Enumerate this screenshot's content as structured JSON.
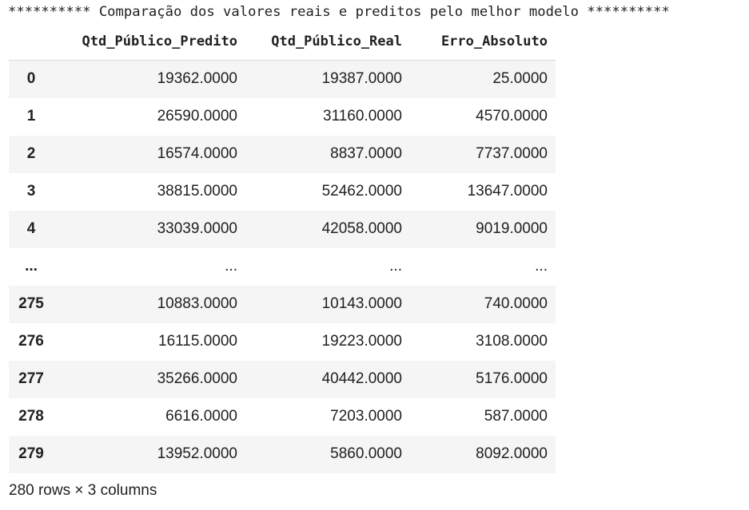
{
  "output": {
    "header_line": "********** Comparação dos valores reais e preditos pelo melhor modelo **********"
  },
  "table": {
    "index_header": "",
    "columns": [
      "Qtd_Público_Predito",
      "Qtd_Público_Real",
      "Erro_Absoluto"
    ],
    "rows": [
      {
        "index": "0",
        "values": [
          "19362.0000",
          "19387.0000",
          "25.0000"
        ]
      },
      {
        "index": "1",
        "values": [
          "26590.0000",
          "31160.0000",
          "4570.0000"
        ]
      },
      {
        "index": "2",
        "values": [
          "16574.0000",
          "8837.0000",
          "7737.0000"
        ]
      },
      {
        "index": "3",
        "values": [
          "38815.0000",
          "52462.0000",
          "13647.0000"
        ]
      },
      {
        "index": "4",
        "values": [
          "33039.0000",
          "42058.0000",
          "9019.0000"
        ]
      },
      {
        "index": "...",
        "values": [
          "...",
          "...",
          "..."
        ]
      },
      {
        "index": "275",
        "values": [
          "10883.0000",
          "10143.0000",
          "740.0000"
        ]
      },
      {
        "index": "276",
        "values": [
          "16115.0000",
          "19223.0000",
          "3108.0000"
        ]
      },
      {
        "index": "277",
        "values": [
          "35266.0000",
          "40442.0000",
          "5176.0000"
        ]
      },
      {
        "index": "278",
        "values": [
          "6616.0000",
          "7203.0000",
          "587.0000"
        ]
      },
      {
        "index": "279",
        "values": [
          "13952.0000",
          "5860.0000",
          "8092.0000"
        ]
      }
    ]
  },
  "shape_info": "280 rows × 3 columns"
}
